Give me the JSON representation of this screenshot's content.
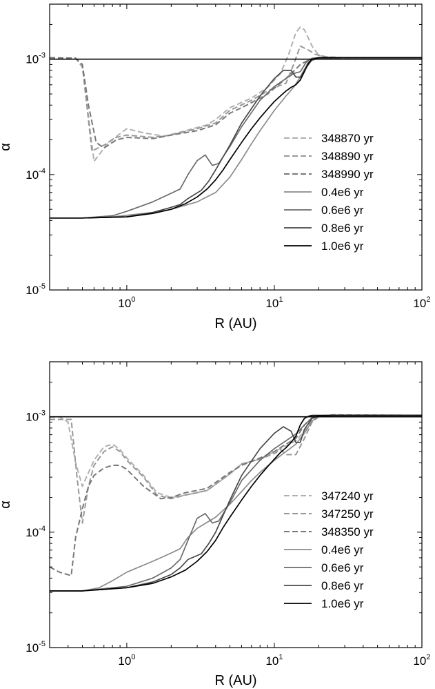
{
  "chart_data": [
    {
      "type": "line",
      "xlabel": "R (AU)",
      "ylabel": "α",
      "x_scale": "log",
      "y_scale": "log",
      "xlim": [
        0.3,
        100
      ],
      "ylim": [
        1e-05,
        0.003
      ],
      "x_ticks": [
        {
          "base": "10",
          "exp": "0",
          "value": 1
        },
        {
          "base": "10",
          "exp": "1",
          "value": 10
        },
        {
          "base": "10",
          "exp": "2",
          "value": 100
        }
      ],
      "y_ticks": [
        {
          "base": "10",
          "exp": "-5",
          "value": 1e-05
        },
        {
          "base": "10",
          "exp": "-4",
          "value": 0.0001
        },
        {
          "base": "10",
          "exp": "-3",
          "value": 0.001
        }
      ],
      "legend_position": "right",
      "grid": false,
      "series": [
        {
          "name": "348870 yr",
          "color": "#b0b0b0",
          "dash": true,
          "x": [
            0.3,
            0.45,
            0.5,
            0.6,
            0.75,
            1.0,
            1.3,
            1.8,
            2.5,
            3.5,
            4.0,
            5.0,
            7.0,
            9.0,
            11.0,
            12.5,
            14.0,
            15.0,
            16.0,
            18.0,
            20.0,
            25.0,
            30.0,
            100.0
          ],
          "y": [
            0.00103,
            0.00102,
            0.00085,
            0.00013,
            0.00019,
            0.00025,
            0.00023,
            0.000215,
            0.00024,
            0.00027,
            0.0003,
            0.00038,
            0.00046,
            0.00057,
            0.00075,
            0.0011,
            0.0017,
            0.0019,
            0.0018,
            0.0013,
            0.00108,
            0.00103,
            0.00103,
            0.00103
          ]
        },
        {
          "name": "348890 yr",
          "color": "#989898",
          "dash": true,
          "x": [
            0.3,
            0.45,
            0.5,
            0.58,
            0.7,
            0.85,
            1.0,
            1.5,
            2.0,
            3.0,
            4.0,
            5.0,
            7.0,
            9.0,
            10.5,
            12.0,
            13.5,
            15.0,
            17.0,
            19.0,
            22.0,
            30.0,
            100.0
          ],
          "y": [
            0.00103,
            0.00102,
            0.00088,
            0.00016,
            0.00018,
            0.00021,
            0.00022,
            0.00021,
            0.00022,
            0.00025,
            0.00028,
            0.00036,
            0.00044,
            0.00053,
            0.00058,
            0.00062,
            0.0009,
            0.0013,
            0.0012,
            0.0011,
            0.00105,
            0.00103,
            0.00103
          ]
        },
        {
          "name": "348990 yr",
          "color": "#787878",
          "dash": true,
          "x": [
            0.3,
            0.45,
            0.5,
            0.55,
            0.62,
            0.7,
            0.85,
            1.0,
            1.5,
            2.0,
            3.0,
            4.0,
            5.0,
            6.0,
            7.0,
            8.0,
            9.0,
            10.0,
            11.0,
            12.0,
            13.0,
            14.0,
            15.0,
            17.0,
            20.0,
            30.0,
            100.0
          ],
          "y": [
            0.00103,
            0.00102,
            0.0009,
            0.0004,
            0.00019,
            0.00017,
            0.0002,
            0.00021,
            0.000205,
            0.00022,
            0.00024,
            0.00027,
            0.00034,
            0.00038,
            0.00042,
            0.00046,
            0.0005,
            0.00056,
            0.00062,
            0.00068,
            0.00075,
            0.00082,
            0.0009,
            0.00098,
            0.00102,
            0.00103,
            0.00103
          ]
        },
        {
          "name": "0.4e6 yr",
          "color": "#8a8a8a",
          "dash": false,
          "x": [
            0.3,
            0.5,
            0.8,
            1.5,
            2.0,
            3.0,
            4.0,
            5.0,
            6.0,
            7.0,
            8.0,
            10.0,
            12.0,
            13.5,
            15.0,
            17.0,
            20.0,
            30.0,
            100.0
          ],
          "y": [
            4.2e-05,
            4.2e-05,
            4.3e-05,
            4.7e-05,
            5e-05,
            5.8e-05,
            7e-05,
            9.5e-05,
            0.000135,
            0.000185,
            0.00024,
            0.00036,
            0.00048,
            0.00057,
            0.0007,
            0.00095,
            0.00102,
            0.00103,
            0.00103
          ]
        },
        {
          "name": "0.6e6 yr",
          "color": "#6a6a6a",
          "dash": false,
          "x": [
            0.3,
            0.5,
            0.8,
            1.0,
            1.5,
            2.3,
            2.6,
            3.0,
            3.4,
            3.8,
            4.2,
            5.0,
            6.0,
            8.0,
            10.0,
            12.0,
            13.5,
            15.0,
            16.5,
            18.0,
            20.0,
            30.0,
            100.0
          ],
          "y": [
            4.2e-05,
            4.2e-05,
            4.4e-05,
            4.8e-05,
            5.8e-05,
            7.5e-05,
            0.0001,
            0.000132,
            0.000148,
            0.00012,
            0.000125,
            0.000175,
            0.00026,
            0.00044,
            0.00058,
            0.00068,
            0.00075,
            0.00078,
            0.00095,
            0.00102,
            0.00103,
            0.00103,
            0.00103
          ]
        },
        {
          "name": "0.8e6 yr",
          "color": "#484848",
          "dash": false,
          "x": [
            0.3,
            0.5,
            1.0,
            1.5,
            2.0,
            2.3,
            2.6,
            3.2,
            3.6,
            4.0,
            5.0,
            6.0,
            8.0,
            10.0,
            11.5,
            13.0,
            14.0,
            15.0,
            16.5,
            18.0,
            20.0,
            30.0,
            100.0
          ],
          "y": [
            4.2e-05,
            4.2e-05,
            4.3e-05,
            4.7e-05,
            5.2e-05,
            5.5e-05,
            6.2e-05,
            7.3e-05,
            8.8e-05,
            0.00011,
            0.00018,
            0.00028,
            0.00048,
            0.00068,
            0.0008,
            0.0008,
            0.0007,
            0.0007,
            0.00085,
            0.00099,
            0.00103,
            0.00103,
            0.00103
          ]
        },
        {
          "name": "1.0e6 yr",
          "color": "#000000",
          "dash": false,
          "x": [
            0.3,
            0.5,
            1.0,
            1.5,
            2.0,
            2.5,
            3.0,
            3.5,
            4.0,
            4.5,
            5.0,
            6.0,
            7.0,
            8.0,
            9.0,
            10.0,
            11.0,
            12.0,
            13.0,
            14.0,
            15.0,
            16.0,
            17.0,
            18.0,
            20.0,
            30.0,
            100.0
          ],
          "y": [
            4.2e-05,
            4.2e-05,
            4.3e-05,
            4.6e-05,
            5e-05,
            5.6e-05,
            6.4e-05,
            7.5e-05,
            9e-05,
            0.00011,
            0.000135,
            0.00019,
            0.00025,
            0.00031,
            0.00037,
            0.00043,
            0.00048,
            0.00053,
            0.00057,
            0.0006,
            0.00066,
            0.00078,
            0.00092,
            0.001,
            0.00103,
            0.00103,
            0.00103
          ]
        },
        {
          "name": "",
          "color": "#000000",
          "dash": false,
          "x": [
            0.3,
            100.0
          ],
          "y": [
            0.001,
            0.001
          ]
        }
      ]
    },
    {
      "type": "line",
      "xlabel": "R (AU)",
      "ylabel": "α",
      "x_scale": "log",
      "y_scale": "log",
      "xlim": [
        0.3,
        100
      ],
      "ylim": [
        1e-05,
        0.003
      ],
      "x_ticks": [
        {
          "base": "10",
          "exp": "0",
          "value": 1
        },
        {
          "base": "10",
          "exp": "1",
          "value": 10
        },
        {
          "base": "10",
          "exp": "2",
          "value": 100
        }
      ],
      "y_ticks": [
        {
          "base": "10",
          "exp": "-5",
          "value": 1e-05
        },
        {
          "base": "10",
          "exp": "-4",
          "value": 0.0001
        },
        {
          "base": "10",
          "exp": "-3",
          "value": 0.001
        }
      ],
      "legend_position": "right",
      "grid": false,
      "series": [
        {
          "name": "347240 yr",
          "color": "#b0b0b0",
          "dash": true,
          "x": [
            0.3,
            0.35,
            0.4,
            0.45,
            0.5,
            0.6,
            0.7,
            0.8,
            0.9,
            1.0,
            1.3,
            1.6,
            2.0,
            2.5,
            3.0,
            3.5,
            4.0,
            5.0,
            6.0,
            8.0,
            10.0,
            12.0,
            14.0,
            16.0,
            18.0,
            20.0,
            25.0,
            100.0
          ],
          "y": [
            0.00099,
            0.001,
            0.0009,
            0.0004,
            0.00025,
            0.00042,
            0.00055,
            0.00058,
            0.00052,
            0.00044,
            0.00031,
            0.00022,
            0.0002,
            0.00021,
            0.00022,
            0.00023,
            0.00026,
            0.00032,
            0.00039,
            0.00043,
            0.0005,
            0.00056,
            0.00062,
            0.00075,
            0.00095,
            0.00102,
            0.00104,
            0.00103
          ]
        },
        {
          "name": "347250 yr",
          "color": "#989898",
          "dash": true,
          "x": [
            0.3,
            0.42,
            0.46,
            0.5,
            0.55,
            0.6,
            0.7,
            0.8,
            0.9,
            1.0,
            1.3,
            1.6,
            2.0,
            2.5,
            3.0,
            3.5,
            4.0,
            5.0,
            6.0,
            8.0,
            10.0,
            11.0,
            12.0,
            14.0,
            16.0,
            18.0,
            20.0,
            25.0,
            100.0
          ],
          "y": [
            0.00095,
            0.00095,
            0.0003,
            0.00012,
            0.00025,
            0.00038,
            0.0005,
            0.00055,
            0.0005,
            0.00042,
            0.0003,
            0.00021,
            0.000195,
            0.00021,
            0.00022,
            0.00023,
            0.00026,
            0.00032,
            0.00039,
            0.00043,
            0.00048,
            0.00052,
            0.00047,
            0.00047,
            0.00065,
            0.0009,
            0.001,
            0.00104,
            0.00103
          ]
        },
        {
          "name": "348350 yr",
          "color": "#787878",
          "dash": true,
          "x": [
            0.3,
            0.35,
            0.42,
            0.45,
            0.5,
            0.55,
            0.6,
            0.7,
            0.8,
            0.9,
            1.0,
            1.3,
            1.7,
            2.0,
            2.5,
            3.0,
            3.5,
            4.0,
            5.0,
            6.0,
            8.0,
            10.0,
            12.0,
            14.0,
            16.0,
            18.0,
            20.0,
            25.0,
            100.0
          ],
          "y": [
            5e-05,
            4.5e-05,
            4.2e-05,
            9e-05,
            0.00016,
            0.00025,
            0.00031,
            0.00036,
            0.00038,
            0.00038,
            0.00035,
            0.00025,
            0.000195,
            0.0002,
            0.00022,
            0.00023,
            0.00024,
            0.00027,
            0.00033,
            0.00038,
            0.00044,
            0.0005,
            0.00058,
            0.00065,
            0.00085,
            0.00098,
            0.00102,
            0.00103,
            0.00103
          ]
        },
        {
          "name": "0.4e6 yr",
          "color": "#8a8a8a",
          "dash": false,
          "x": [
            0.3,
            0.5,
            0.65,
            0.8,
            1.0,
            1.5,
            2.0,
            2.3,
            2.6,
            3.0,
            4.0,
            5.0,
            6.0,
            7.0,
            8.0,
            10.0,
            12.0,
            14.0,
            16.0,
            18.0,
            20.0,
            25.0,
            100.0
          ],
          "y": [
            3.1e-05,
            3.1e-05,
            3.3e-05,
            3.8e-05,
            4.5e-05,
            5.6e-05,
            6.6e-05,
            7.2e-05,
            9e-05,
            0.000108,
            0.000135,
            0.000175,
            0.000225,
            0.00028,
            0.00033,
            0.00042,
            0.0005,
            0.00058,
            0.00072,
            0.00092,
            0.00101,
            0.00103,
            0.00103
          ]
        },
        {
          "name": "0.6e6 yr",
          "color": "#6a6a6a",
          "dash": false,
          "x": [
            0.3,
            0.5,
            1.0,
            1.5,
            2.0,
            2.3,
            2.6,
            3.0,
            3.4,
            3.8,
            4.2,
            5.0,
            6.0,
            8.0,
            10.0,
            12.0,
            14.0,
            16.0,
            18.0,
            20.0,
            25.0,
            100.0
          ],
          "y": [
            3.1e-05,
            3.1e-05,
            3.4e-05,
            4e-05,
            4.9e-05,
            5.8e-05,
            8.5e-05,
            0.000132,
            0.000145,
            0.00012,
            0.000125,
            0.00018,
            0.00028,
            0.00042,
            0.00053,
            0.00062,
            0.00071,
            0.00085,
            0.00098,
            0.00102,
            0.00103,
            0.00103
          ]
        },
        {
          "name": "0.8e6 yr",
          "color": "#484848",
          "dash": false,
          "x": [
            0.3,
            0.5,
            1.0,
            1.5,
            2.0,
            2.3,
            2.6,
            3.2,
            3.6,
            4.0,
            5.0,
            6.0,
            8.0,
            10.0,
            11.5,
            13.0,
            14.0,
            15.0,
            16.0,
            18.0,
            20.0,
            25.0,
            100.0
          ],
          "y": [
            3.1e-05,
            3.1e-05,
            3.3e-05,
            3.7e-05,
            4.3e-05,
            4.9e-05,
            5.8e-05,
            6.5e-05,
            8e-05,
            0.0001,
            0.00019,
            0.00031,
            0.00053,
            0.00072,
            0.00082,
            0.00075,
            0.0006,
            0.0006,
            0.00078,
            0.00097,
            0.00102,
            0.00103,
            0.00103
          ]
        },
        {
          "name": "1.0e6 yr",
          "color": "#000000",
          "dash": false,
          "x": [
            0.3,
            0.5,
            1.0,
            1.5,
            2.0,
            2.5,
            3.0,
            3.5,
            4.0,
            4.5,
            5.0,
            6.0,
            7.0,
            8.0,
            9.0,
            10.0,
            11.0,
            12.0,
            13.0,
            14.0,
            15.0,
            16.0,
            17.0,
            18.0,
            20.0,
            25.0,
            100.0
          ],
          "y": [
            3.1e-05,
            3.1e-05,
            3.3e-05,
            3.6e-05,
            4.1e-05,
            4.7e-05,
            5.6e-05,
            6.8e-05,
            8.5e-05,
            0.00011,
            0.000135,
            0.00019,
            0.00025,
            0.00031,
            0.00037,
            0.00043,
            0.00049,
            0.00054,
            0.0006,
            0.00068,
            0.00085,
            0.00097,
            0.00101,
            0.00103,
            0.00103,
            0.00103,
            0.00103
          ]
        },
        {
          "name": "",
          "color": "#000000",
          "dash": false,
          "x": [
            0.3,
            100.0
          ],
          "y": [
            0.001,
            0.001
          ]
        }
      ]
    }
  ]
}
